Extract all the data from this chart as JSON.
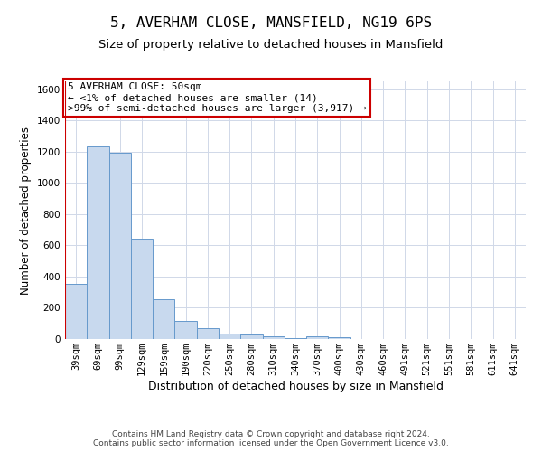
{
  "title": "5, AVERHAM CLOSE, MANSFIELD, NG19 6PS",
  "subtitle": "Size of property relative to detached houses in Mansfield",
  "xlabel": "Distribution of detached houses by size in Mansfield",
  "ylabel": "Number of detached properties",
  "footnote": "Contains HM Land Registry data © Crown copyright and database right 2024.\nContains public sector information licensed under the Open Government Licence v3.0.",
  "annotation_title": "5 AVERHAM CLOSE: 50sqm",
  "annotation_line1": "← <1% of detached houses are smaller (14)",
  "annotation_line2": ">99% of semi-detached houses are larger (3,917) →",
  "bar_color": "#c8d9ee",
  "bar_edge_color": "#6699cc",
  "annotation_box_edge": "#cc0000",
  "property_line_color": "#cc0000",
  "grid_color": "#d0d8e8",
  "background_color": "#ffffff",
  "categories": [
    "39sqm",
    "69sqm",
    "99sqm",
    "129sqm",
    "159sqm",
    "190sqm",
    "220sqm",
    "250sqm",
    "280sqm",
    "310sqm",
    "340sqm",
    "370sqm",
    "400sqm",
    "430sqm",
    "460sqm",
    "491sqm",
    "521sqm",
    "551sqm",
    "581sqm",
    "611sqm",
    "641sqm"
  ],
  "values": [
    352,
    1232,
    1195,
    642,
    255,
    115,
    68,
    35,
    28,
    18,
    8,
    15,
    12,
    0,
    0,
    0,
    0,
    0,
    0,
    0,
    0
  ],
  "ylim": [
    0,
    1650
  ],
  "yticks": [
    0,
    200,
    400,
    600,
    800,
    1000,
    1200,
    1400,
    1600
  ],
  "title_fontsize": 11.5,
  "subtitle_fontsize": 9.5,
  "xlabel_fontsize": 9,
  "ylabel_fontsize": 8.5,
  "tick_fontsize": 7.5,
  "annotation_fontsize": 8,
  "footnote_fontsize": 6.5
}
